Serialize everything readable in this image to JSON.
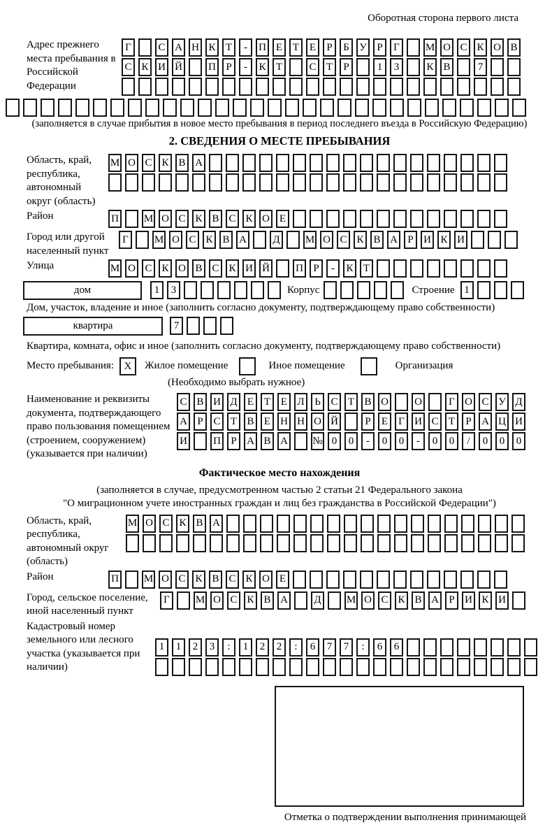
{
  "page": {
    "header": "Оборотная сторона первого листа"
  },
  "prev_address": {
    "label": "Адрес прежнего места пребывания в Российской Федерации",
    "row1": {
      "count": 24,
      "chars": "Г САНКТ-ПЕТЕРБУРГ МОСКОВ"
    },
    "row2": {
      "count": 24,
      "chars": "СКИЙ ПР-КТ СТР 13 КВ 7"
    },
    "row3": {
      "count": 24,
      "chars": ""
    },
    "row4": {
      "count": 30,
      "chars": ""
    },
    "note": "(заполняется в случае прибытия в новое место пребывания в период последнего въезда в Российскую Федерацию)"
  },
  "section2": {
    "title": "2. СВЕДЕНИЯ О МЕСТЕ ПРЕБЫВАНИЯ",
    "region": {
      "label": "Область, край, республика, автономный округ (область)",
      "row1": {
        "count": 24,
        "chars": "МОСКВА"
      },
      "row2": {
        "count": 24,
        "chars": ""
      }
    },
    "district": {
      "label": "Район",
      "row": {
        "count": 24,
        "chars": "П МОСКВСКОЕ"
      }
    },
    "city": {
      "label": "Город или другой населенный пункт",
      "row": {
        "count": 24,
        "chars": "Г МОСКВА Д МОСКВАРИКИ"
      }
    },
    "street": {
      "label": "Улица",
      "row": {
        "count": 24,
        "chars": "МОСКОВСКИЙ ПР-КТ"
      }
    },
    "house": {
      "type_label": "дом",
      "number": {
        "count": 8,
        "chars": "13"
      },
      "korpus_label": "Корпус",
      "korpus": {
        "count": 5,
        "chars": ""
      },
      "stroenie_label": "Строение",
      "stroenie": {
        "count": 4,
        "chars": "1"
      },
      "note": "Дом, участок, владение и иное (заполнить согласно документу, подтверждающему право собственности)"
    },
    "apartment": {
      "type_label": "квартира",
      "number": {
        "count": 4,
        "chars": "7"
      },
      "note": "Квартира, комната, офис и иное (заполнить согласно документу, подтверждающему право собственности)"
    },
    "stay_place": {
      "label": "Место пребывания:",
      "options": [
        {
          "label": "Жилое помещение",
          "checked": "X"
        },
        {
          "label": "Иное помещение",
          "checked": ""
        },
        {
          "label": "Организация",
          "checked": ""
        }
      ],
      "note": "(Необходимо выбрать нужное)"
    },
    "document": {
      "label": "Наименование и реквизиты документа, подтверждающего право пользования помещением (строением, сооружением) (указывается при наличии)",
      "row1": {
        "count": 21,
        "chars": "СВИДЕТЕЛЬСТВО О ГОСУД"
      },
      "row2": {
        "count": 21,
        "chars": "АРСТВЕННОЙ РЕГИСТРАЦИ"
      },
      "row3": {
        "count": 21,
        "chars": "И ПРАВА №00-00-00/000"
      }
    }
  },
  "actual_location": {
    "title": "Фактическое место нахождения",
    "note_line1": "(заполняется в случае, предусмотренном частью 2 статьи 21 Федерального закона",
    "note_line2": "\"О миграционном учете иностранных граждан и лиц без гражданства в Российской Федерации\")",
    "region": {
      "label": "Область, край, республика, автономный округ (область)",
      "row1": {
        "count": 24,
        "chars": "МОСКВА"
      },
      "row2": {
        "count": 24,
        "chars": ""
      }
    },
    "district": {
      "label": "Район",
      "row": {
        "count": 24,
        "chars": "П МОСКВСКОЕ"
      }
    },
    "city": {
      "label": "Город, сельское поселение, иной населенный пункт",
      "row": {
        "count": 22,
        "chars": "Г МОСКВА Д МОСКВАРИКИ"
      }
    },
    "cadastre": {
      "label": "Кадастровый номер земельного или лесного участка (указывается при наличии)",
      "row1": {
        "count": 23,
        "chars": "1123:122:677:66"
      },
      "row2": {
        "count": 23,
        "chars": ""
      }
    },
    "stamp_note": "Отметка о подтверждении выполнения принимающей стороной и иностранным гражданином или лицом без гражданства действий, необходимых для его постановки на учет по месту пребывания"
  }
}
